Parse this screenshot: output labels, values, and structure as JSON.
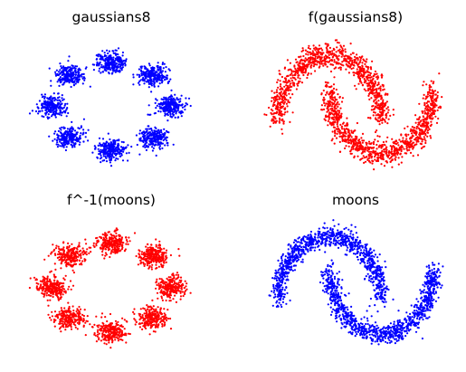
{
  "chart_data": [
    {
      "type": "scatter",
      "title": "gaussians8",
      "color": "#0000ff",
      "grid": false,
      "axes_visible": false,
      "xlim": [
        -1.6,
        1.6
      ],
      "ylim": [
        -1.6,
        1.6
      ],
      "distribution": "gaussian_mixture",
      "centers": [
        [
          1,
          0
        ],
        [
          0.707,
          0.707
        ],
        [
          0,
          1
        ],
        [
          -0.707,
          0.707
        ],
        [
          -1,
          0
        ],
        [
          -0.707,
          -0.707
        ],
        [
          0,
          -1
        ],
        [
          0.707,
          -0.707
        ]
      ],
      "std": 0.12,
      "n_points": 2000,
      "seed": 11
    },
    {
      "type": "scatter",
      "title": "f(gaussians8)",
      "color": "#ff0000",
      "grid": false,
      "axes_visible": false,
      "xlim": [
        -1.35,
        2.35
      ],
      "ylim": [
        -0.85,
        1.3
      ],
      "distribution": "two_moons",
      "noise": 0.09,
      "n_points": 2000,
      "seed": 23
    },
    {
      "type": "scatter",
      "title": "f^-1(moons)",
      "color": "#ff0000",
      "grid": false,
      "axes_visible": false,
      "xlim": [
        -1.6,
        1.6
      ],
      "ylim": [
        -1.6,
        1.6
      ],
      "distribution": "gaussian_mixture",
      "centers": [
        [
          1,
          0
        ],
        [
          0.707,
          0.707
        ],
        [
          0,
          1
        ],
        [
          -0.707,
          0.707
        ],
        [
          -1,
          0
        ],
        [
          -0.707,
          -0.707
        ],
        [
          0,
          -1
        ],
        [
          0.707,
          -0.707
        ]
      ],
      "std": 0.13,
      "n_points": 2000,
      "seed": 37
    },
    {
      "type": "scatter",
      "title": "moons",
      "color": "#0000ff",
      "grid": false,
      "axes_visible": false,
      "xlim": [
        -1.35,
        2.35
      ],
      "ylim": [
        -0.85,
        1.3
      ],
      "distribution": "two_moons",
      "noise": 0.08,
      "n_points": 2000,
      "seed": 51
    }
  ]
}
